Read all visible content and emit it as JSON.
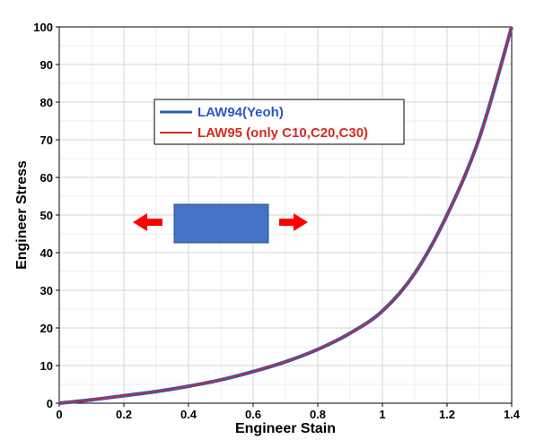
{
  "chart_data": {
    "type": "line",
    "title": "",
    "xlabel": "Engineer Stain",
    "ylabel": "Engineer Stress",
    "xlim": [
      0,
      1.4
    ],
    "ylim": [
      0,
      100
    ],
    "xticks": [
      0,
      0.2,
      0.4,
      0.6,
      0.8,
      1,
      1.2,
      1.4
    ],
    "xtick_labels": [
      "0",
      "0.2",
      "0.4",
      "0.6",
      "0.8",
      "1",
      "1.2",
      "1.4"
    ],
    "yticks": [
      0,
      10,
      20,
      30,
      40,
      50,
      60,
      70,
      80,
      90,
      100
    ],
    "ytick_labels": [
      "0",
      "10",
      "20",
      "30",
      "40",
      "50",
      "60",
      "70",
      "80",
      "90",
      "100"
    ],
    "grid": true,
    "legend_position": "upper-left",
    "series": [
      {
        "name": "LAW94(Yeoh)",
        "color": "#2a56c6",
        "x": [
          0,
          0.1,
          0.2,
          0.3,
          0.4,
          0.5,
          0.6,
          0.7,
          0.8,
          0.9,
          1.0,
          1.1,
          1.2,
          1.3,
          1.4
        ],
        "y": [
          0,
          0.9,
          2.0,
          3.1,
          4.5,
          6.2,
          8.4,
          11.0,
          14.3,
          18.6,
          24.5,
          34.5,
          50.0,
          70.5,
          100.0
        ]
      },
      {
        "name": "LAW95 (only C10,C20,C30)",
        "color": "#d42a1e",
        "x": [
          0,
          0.1,
          0.2,
          0.3,
          0.4,
          0.5,
          0.6,
          0.7,
          0.8,
          0.9,
          1.0,
          1.1,
          1.2,
          1.3,
          1.4
        ],
        "y": [
          0,
          0.9,
          2.0,
          3.1,
          4.5,
          6.2,
          8.4,
          11.0,
          14.3,
          18.6,
          24.5,
          34.5,
          50.0,
          70.5,
          100.0
        ]
      }
    ]
  },
  "illustration": {
    "specimen_color": "#4472c4",
    "arrow_color": "#ff0000"
  }
}
